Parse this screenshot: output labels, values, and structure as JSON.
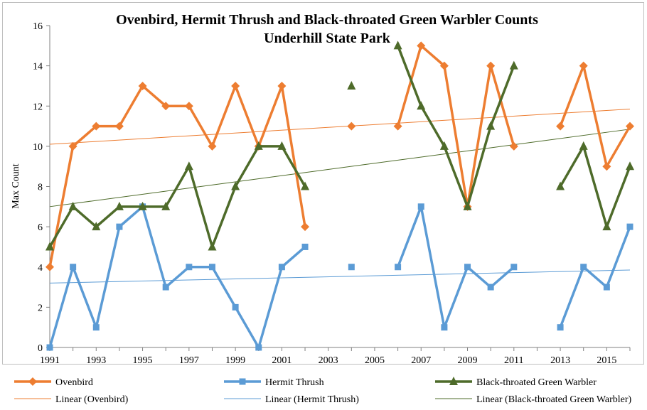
{
  "chart_data": {
    "type": "line",
    "title": "Ovenbird, Hermit Thrush and Black-throated Green Warbler Counts",
    "subtitle": "Underhill State Park",
    "xlabel": "",
    "ylabel": "Max Count",
    "xlim": [
      1991,
      2016
    ],
    "ylim": [
      0,
      16
    ],
    "x_ticks": [
      1991,
      1993,
      1995,
      1997,
      1999,
      2001,
      2003,
      2005,
      2007,
      2009,
      2011,
      2013,
      2015
    ],
    "y_ticks": [
      0,
      2,
      4,
      6,
      8,
      10,
      12,
      14,
      16
    ],
    "grid": false,
    "legend_position": "bottom",
    "x": [
      1991,
      1992,
      1993,
      1994,
      1995,
      1996,
      1997,
      1998,
      1999,
      2000,
      2001,
      2002,
      2003,
      2004,
      2005,
      2006,
      2007,
      2008,
      2009,
      2010,
      2011,
      2012,
      2013,
      2014,
      2015,
      2016
    ],
    "series": [
      {
        "name": "Ovenbird",
        "color": "#ED7D31",
        "marker": "diamond",
        "values": [
          4,
          10,
          11,
          11,
          13,
          12,
          12,
          10,
          13,
          10,
          13,
          6,
          null,
          11,
          null,
          11,
          15,
          14,
          7,
          14,
          10,
          null,
          11,
          14,
          9,
          11
        ]
      },
      {
        "name": "Hermit Thrush",
        "color": "#5B9BD5",
        "marker": "square",
        "values": [
          0,
          4,
          1,
          6,
          7,
          3,
          4,
          4,
          2,
          0,
          4,
          5,
          null,
          4,
          null,
          4,
          7,
          1,
          4,
          3,
          4,
          null,
          1,
          4,
          3,
          6
        ]
      },
      {
        "name": "Black-throated Green Warbler",
        "color": "#4E6B2A",
        "marker": "triangle",
        "values": [
          5,
          7,
          6,
          7,
          7,
          7,
          9,
          5,
          8,
          10,
          10,
          8,
          null,
          13,
          null,
          15,
          12,
          10,
          7,
          11,
          14,
          null,
          8,
          10,
          6,
          9
        ]
      }
    ],
    "trendlines": [
      {
        "name": "Linear (Ovenbird)",
        "color": "#ED7D31",
        "y_start": 10.1,
        "y_end": 11.85
      },
      {
        "name": "Linear (Hermit Thrush)",
        "color": "#5B9BD5",
        "y_start": 3.2,
        "y_end": 3.85
      },
      {
        "name": "Linear (Black-throated Green Warbler)",
        "color": "#4E6B2A",
        "y_start": 7.0,
        "y_end": 10.85
      }
    ]
  }
}
